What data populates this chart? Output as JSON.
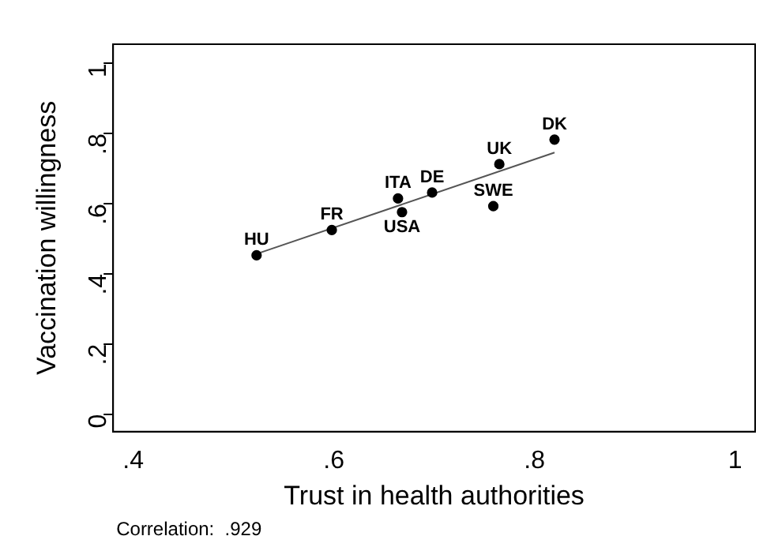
{
  "chart_data": {
    "type": "scatter",
    "xlabel": "Trust in health authorities",
    "ylabel": "Vaccination willingness",
    "annotations": [
      "Correlation:  .929"
    ],
    "series": [
      {
        "marker": "circle",
        "color": "#000000",
        "x": [
          0.523,
          0.598,
          0.668,
          0.664,
          0.698,
          0.765,
          0.759,
          0.82
        ],
        "values": [
          0.453,
          0.525,
          0.576,
          0.615,
          0.632,
          0.713,
          0.593,
          0.783
        ],
        "value_labels": [
          "HU",
          "FR",
          "USA",
          "ITA",
          "DE",
          "UK",
          "SWE",
          "DK"
        ]
      },
      {
        "type": "line",
        "color": "#555555",
        "x": [
          0.523,
          0.82
        ],
        "values": [
          0.457,
          0.746
        ]
      }
    ],
    "xlim": [
      0.38,
      1.02
    ],
    "ylim": [
      -0.05,
      1.055
    ],
    "xticks": [
      {
        "value": 0.4,
        "label": ".4"
      },
      {
        "value": 0.6,
        "label": ".6"
      },
      {
        "value": 0.8,
        "label": ".8"
      },
      1
    ],
    "yticks": [
      0,
      {
        "value": 0.2,
        "label": ".2"
      },
      {
        "value": 0.4,
        "label": ".4"
      },
      {
        "value": 0.6,
        "label": ".6"
      },
      {
        "value": 0.8,
        "label": ".8"
      },
      1
    ],
    "grid": false,
    "legend": false
  }
}
